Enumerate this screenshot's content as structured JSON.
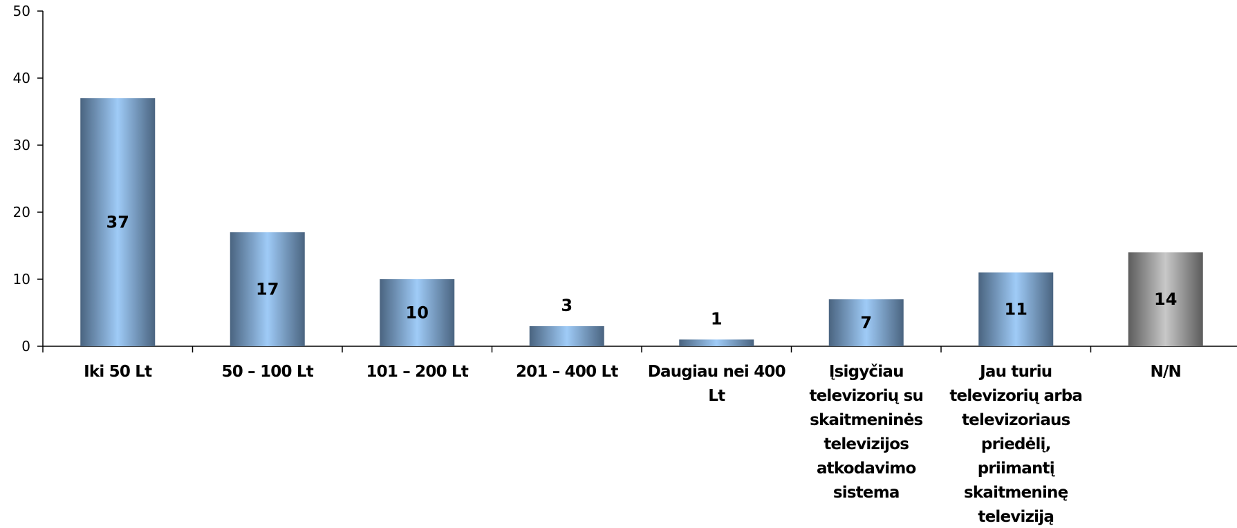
{
  "chart_data": {
    "type": "bar",
    "title": "",
    "xlabel": "",
    "ylabel": "",
    "ylim": [
      0,
      50
    ],
    "yticks": [
      0,
      10,
      20,
      30,
      40,
      50
    ],
    "grid": false,
    "legend": "none",
    "categories": [
      "Iki 50 Lt",
      "50 – 100 Lt",
      "101 – 200 Lt",
      "201 – 400 Lt",
      "Daugiau nei 400 Lt",
      "Įsigyčiau televizorių su skaitmeninės televizijos atkodavimo sistema",
      "Jau turiu televizorių arba televizoriaus priedėlį, priimantį skaitmeninę televiziją",
      "N/N"
    ],
    "category_lines": [
      [
        "Iki 50 Lt"
      ],
      [
        "50 – 100 Lt"
      ],
      [
        "101 – 200 Lt"
      ],
      [
        "201 – 400 Lt"
      ],
      [
        "Daugiau nei 400",
        "Lt"
      ],
      [
        "Įsigyčiau",
        "televizorių su",
        "skaitmeninės",
        "televizijos",
        "atkodavimo",
        "sistema"
      ],
      [
        "Jau turiu",
        "televizorių arba",
        "televizoriaus",
        "priedėlį,",
        "priimantį",
        "skaitmeninę",
        "televiziją"
      ],
      [
        "N/N"
      ]
    ],
    "values": [
      37,
      17,
      10,
      3,
      1,
      7,
      11,
      14
    ],
    "data_labels": [
      "37",
      "17",
      "10",
      "3",
      "1",
      "7",
      "11",
      "14"
    ],
    "colors": {
      "bar_edge": "#4a6480",
      "bar_mid": "#9fcbf7",
      "nn_edge": "#5c5c5c",
      "nn_mid": "#c8c8c8",
      "axis": "#000000"
    }
  }
}
